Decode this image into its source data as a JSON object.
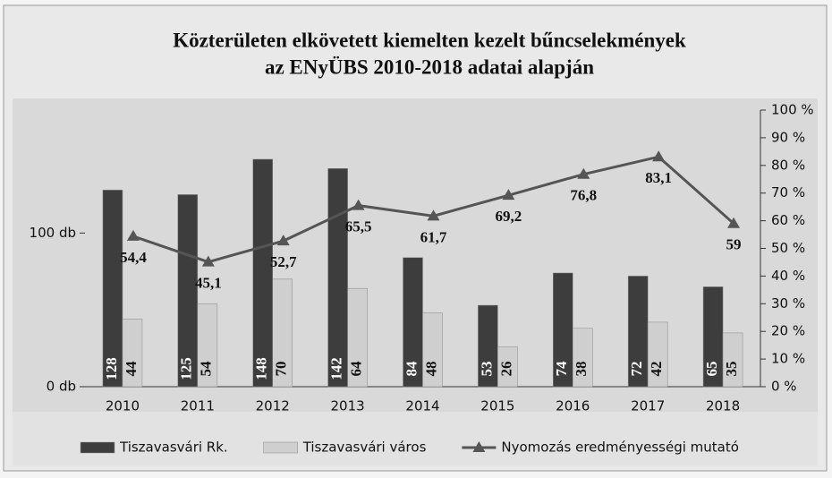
{
  "chart_data": {
    "type": "bar-line",
    "title": [
      "Közterületen elkövetett kiemelten kezelt bűncselekmények",
      "az ENyÜBS 2010-2018 adatai alapján"
    ],
    "categories": [
      "2010",
      "2011",
      "2012",
      "2013",
      "2014",
      "2015",
      "2016",
      "2017",
      "2018"
    ],
    "series": [
      {
        "name": "Tiszavasvári Rk.",
        "color": "#3d3d3d",
        "type": "bar",
        "values": [
          128,
          125,
          148,
          142,
          84,
          53,
          74,
          72,
          65
        ]
      },
      {
        "name": "Tiszavasvári város",
        "color": "#cfcfcf",
        "type": "bar",
        "values": [
          44,
          54,
          70,
          64,
          48,
          26,
          38,
          42,
          35
        ]
      },
      {
        "name": "Nyomozás eredményességi mutató",
        "color": "#555555",
        "type": "line",
        "axis": "y2",
        "values": [
          54.4,
          45.1,
          52.7,
          65.5,
          61.7,
          69.2,
          76.8,
          83.1,
          59
        ],
        "value_labels": [
          "54,4",
          "45,1",
          "52,7",
          "65,5",
          "61,7",
          "69,2",
          "76,8",
          "83,1",
          "59"
        ]
      }
    ],
    "ylim": [
      0,
      180
    ],
    "yticks": [
      {
        "value": 0,
        "label": "0 db"
      },
      {
        "value": 100,
        "label": "100 db"
      }
    ],
    "y2lim": [
      0,
      100
    ],
    "y2ticks": [
      {
        "value": 0,
        "label": "0 %"
      },
      {
        "value": 10,
        "label": "10 %"
      },
      {
        "value": 20,
        "label": "20 %"
      },
      {
        "value": 30,
        "label": "30 %"
      },
      {
        "value": 40,
        "label": "40 %"
      },
      {
        "value": 50,
        "label": "50 %"
      },
      {
        "value": 60,
        "label": "60 %"
      },
      {
        "value": 70,
        "label": "70 %"
      },
      {
        "value": 80,
        "label": "80 %"
      },
      {
        "value": 90,
        "label": "90 %"
      },
      {
        "value": 100,
        "label": "100 %"
      }
    ]
  }
}
